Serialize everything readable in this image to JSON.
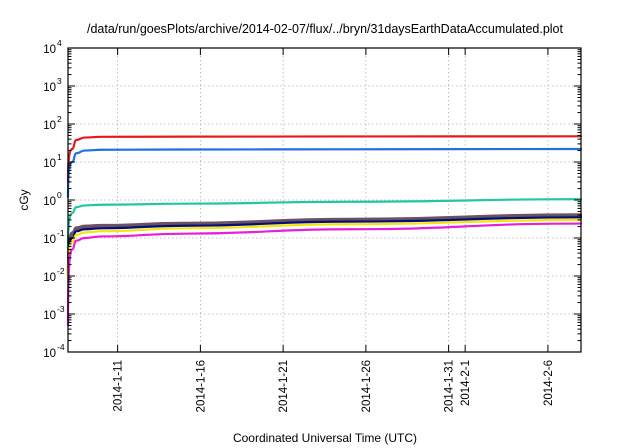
{
  "chart_data": {
    "type": "line",
    "title": "/data/run/goesPlots/archive/2014-02-07/flux/../bryn/31daysEarthDataAccumulated.plot",
    "xlabel": "Coordinated Universal Time (UTC)",
    "ylabel": "cGy",
    "y_scale": "log",
    "ylim": [
      0.0001,
      10000
    ],
    "xlim": [
      "2014-01-08",
      "2014-02-08"
    ],
    "grid": true,
    "legend": "none",
    "y_ticks": [
      {
        "base": "10",
        "exp": "-4",
        "value": 0.0001
      },
      {
        "base": "10",
        "exp": "-3",
        "value": 0.001
      },
      {
        "base": "10",
        "exp": "-2",
        "value": 0.01
      },
      {
        "base": "10",
        "exp": "-1",
        "value": 0.1
      },
      {
        "base": "10",
        "exp": "0",
        "value": 1
      },
      {
        "base": "10",
        "exp": "1",
        "value": 10
      },
      {
        "base": "10",
        "exp": "2",
        "value": 100
      },
      {
        "base": "10",
        "exp": "3",
        "value": 1000
      },
      {
        "base": "10",
        "exp": "4",
        "value": 10000
      }
    ],
    "x_ticks": [
      "2014-1-11",
      "2014-1-16",
      "2014-1-21",
      "2014-1-26",
      "2014-1-31",
      "2014-2-1",
      "2014-2-6"
    ],
    "series": [
      {
        "color": "#e41a1c",
        "x": [
          "2014-01-08",
          "2014-01-08T06",
          "2014-01-08T12",
          "2014-01-09",
          "2014-01-10",
          "2014-01-15",
          "2014-01-25",
          "2014-02-08"
        ],
        "y": [
          3,
          22,
          38,
          44,
          46,
          46.5,
          47,
          47.5
        ]
      },
      {
        "color": "#1f6fe5",
        "x": [
          "2014-01-08",
          "2014-01-08T06",
          "2014-01-08T12",
          "2014-01-09",
          "2014-01-10",
          "2014-01-15",
          "2014-01-25",
          "2014-02-08"
        ],
        "y": [
          1.2,
          10,
          17,
          20,
          21,
          21.3,
          21.6,
          22
        ]
      },
      {
        "color": "#1ec8a0",
        "x": [
          "2014-01-08",
          "2014-01-08T06",
          "2014-01-08T12",
          "2014-01-09",
          "2014-01-10",
          "2014-01-15",
          "2014-01-25",
          "2014-02-08"
        ],
        "y": [
          0.05,
          0.45,
          0.65,
          0.72,
          0.75,
          0.8,
          0.9,
          1.05
        ]
      },
      {
        "color": "#7b4a6b",
        "x": [
          "2014-01-08",
          "2014-01-08T06",
          "2014-01-08T12",
          "2014-01-09",
          "2014-01-10",
          "2014-01-15",
          "2014-01-25",
          "2014-02-08"
        ],
        "y": [
          0.015,
          0.14,
          0.19,
          0.21,
          0.22,
          0.25,
          0.32,
          0.42
        ]
      },
      {
        "color": "#5a5a5a",
        "x": [
          "2014-01-08",
          "2014-01-08T06",
          "2014-01-08T12",
          "2014-01-09",
          "2014-01-10",
          "2014-01-15",
          "2014-01-25",
          "2014-02-08"
        ],
        "y": [
          0.012,
          0.12,
          0.17,
          0.19,
          0.2,
          0.23,
          0.3,
          0.39
        ]
      },
      {
        "color": "#0a0a7a",
        "x": [
          "2014-01-08",
          "2014-01-08T06",
          "2014-01-08T12",
          "2014-01-09",
          "2014-01-10",
          "2014-01-15",
          "2014-01-25",
          "2014-02-08"
        ],
        "y": [
          0.01,
          0.1,
          0.15,
          0.17,
          0.18,
          0.21,
          0.27,
          0.35
        ]
      },
      {
        "color": "#f2e60c",
        "x": [
          "2014-01-08",
          "2014-01-08T06",
          "2014-01-08T12",
          "2014-01-09",
          "2014-01-10",
          "2014-01-15",
          "2014-01-25",
          "2014-02-08"
        ],
        "y": [
          0.008,
          0.08,
          0.12,
          0.14,
          0.15,
          0.18,
          0.23,
          0.3
        ]
      },
      {
        "color": "#e81ed8",
        "x": [
          "2014-01-08",
          "2014-01-08T06",
          "2014-01-08T12",
          "2014-01-09",
          "2014-01-10",
          "2014-01-15",
          "2014-01-25",
          "2014-02-08"
        ],
        "y": [
          0.0005,
          0.05,
          0.085,
          0.1,
          0.11,
          0.13,
          0.17,
          0.24
        ]
      }
    ]
  }
}
